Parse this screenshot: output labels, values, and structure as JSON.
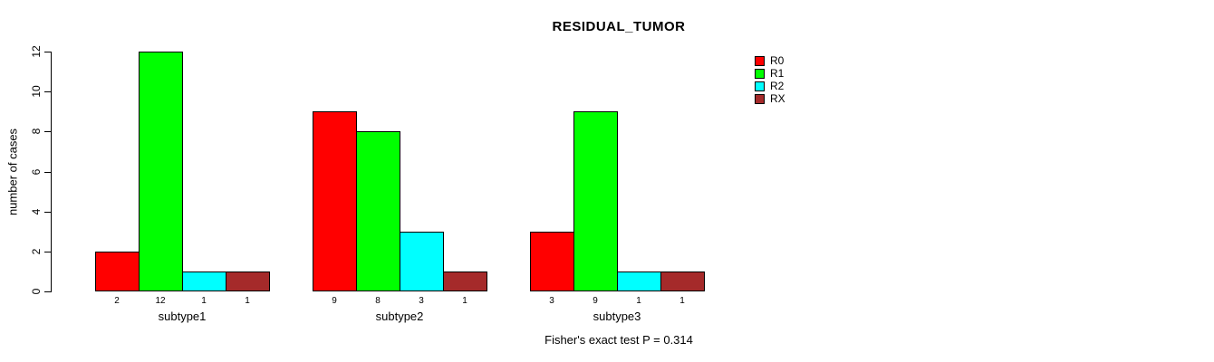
{
  "chart_data": {
    "type": "bar",
    "title": "RESIDUAL_TUMOR",
    "xlabel": "",
    "ylabel": "number of cases",
    "categories": [
      "subtype1",
      "subtype2",
      "subtype3"
    ],
    "series": [
      {
        "name": "R0",
        "color": "#FF0000",
        "values": [
          2,
          9,
          3
        ]
      },
      {
        "name": "R1",
        "color": "#00FF00",
        "values": [
          12,
          8,
          9
        ]
      },
      {
        "name": "R2",
        "color": "#00FFFF",
        "values": [
          1,
          3,
          1
        ]
      },
      {
        "name": "RX",
        "color": "#A52A2A",
        "values": [
          1,
          1,
          1
        ]
      }
    ],
    "ylim": [
      0,
      12
    ],
    "yticks": [
      0,
      2,
      4,
      6,
      8,
      10,
      12
    ],
    "grid": false,
    "legend_position": "right",
    "bar_value_labels": true,
    "annotation": "Fisher's exact test P = 0.314"
  }
}
